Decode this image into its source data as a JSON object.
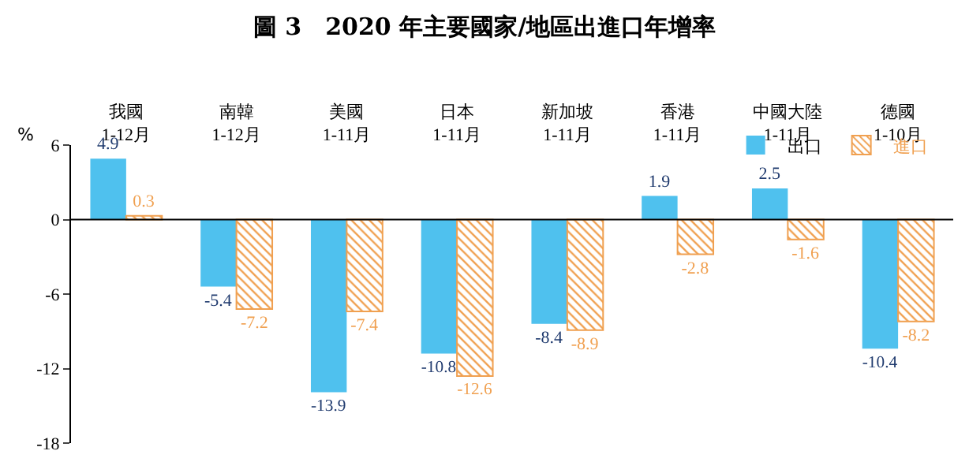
{
  "chart_data": {
    "type": "bar",
    "title": "圖 3　2020 年主要國家/地區出進口年增率",
    "ylabel": "%",
    "categories": [
      "我國\n1-12月",
      "南韓\n1-12月",
      "美國\n1-11月",
      "日本\n1-11月",
      "新加坡\n1-11月",
      "香港\n1-11月",
      "中國大陸\n1-11月",
      "德國\n1-10月"
    ],
    "series": [
      {
        "name": "出口",
        "color": "#4fc1ee",
        "values": [
          4.9,
          -5.4,
          -13.9,
          -10.8,
          -8.4,
          1.9,
          2.5,
          -10.4
        ]
      },
      {
        "name": "進口",
        "color": "#f0a050",
        "values": [
          0.3,
          -7.2,
          -7.4,
          -12.6,
          -8.9,
          -2.8,
          -1.6,
          -8.2
        ]
      }
    ],
    "ref_lines": [
      {
        "axis": "y",
        "value": 0,
        "color": "#000000"
      }
    ],
    "ylim": [
      -18,
      6
    ],
    "yticks": [
      6,
      0,
      -6,
      -12,
      -18
    ],
    "data_labels": true,
    "legend": "top right",
    "grid": false
  }
}
